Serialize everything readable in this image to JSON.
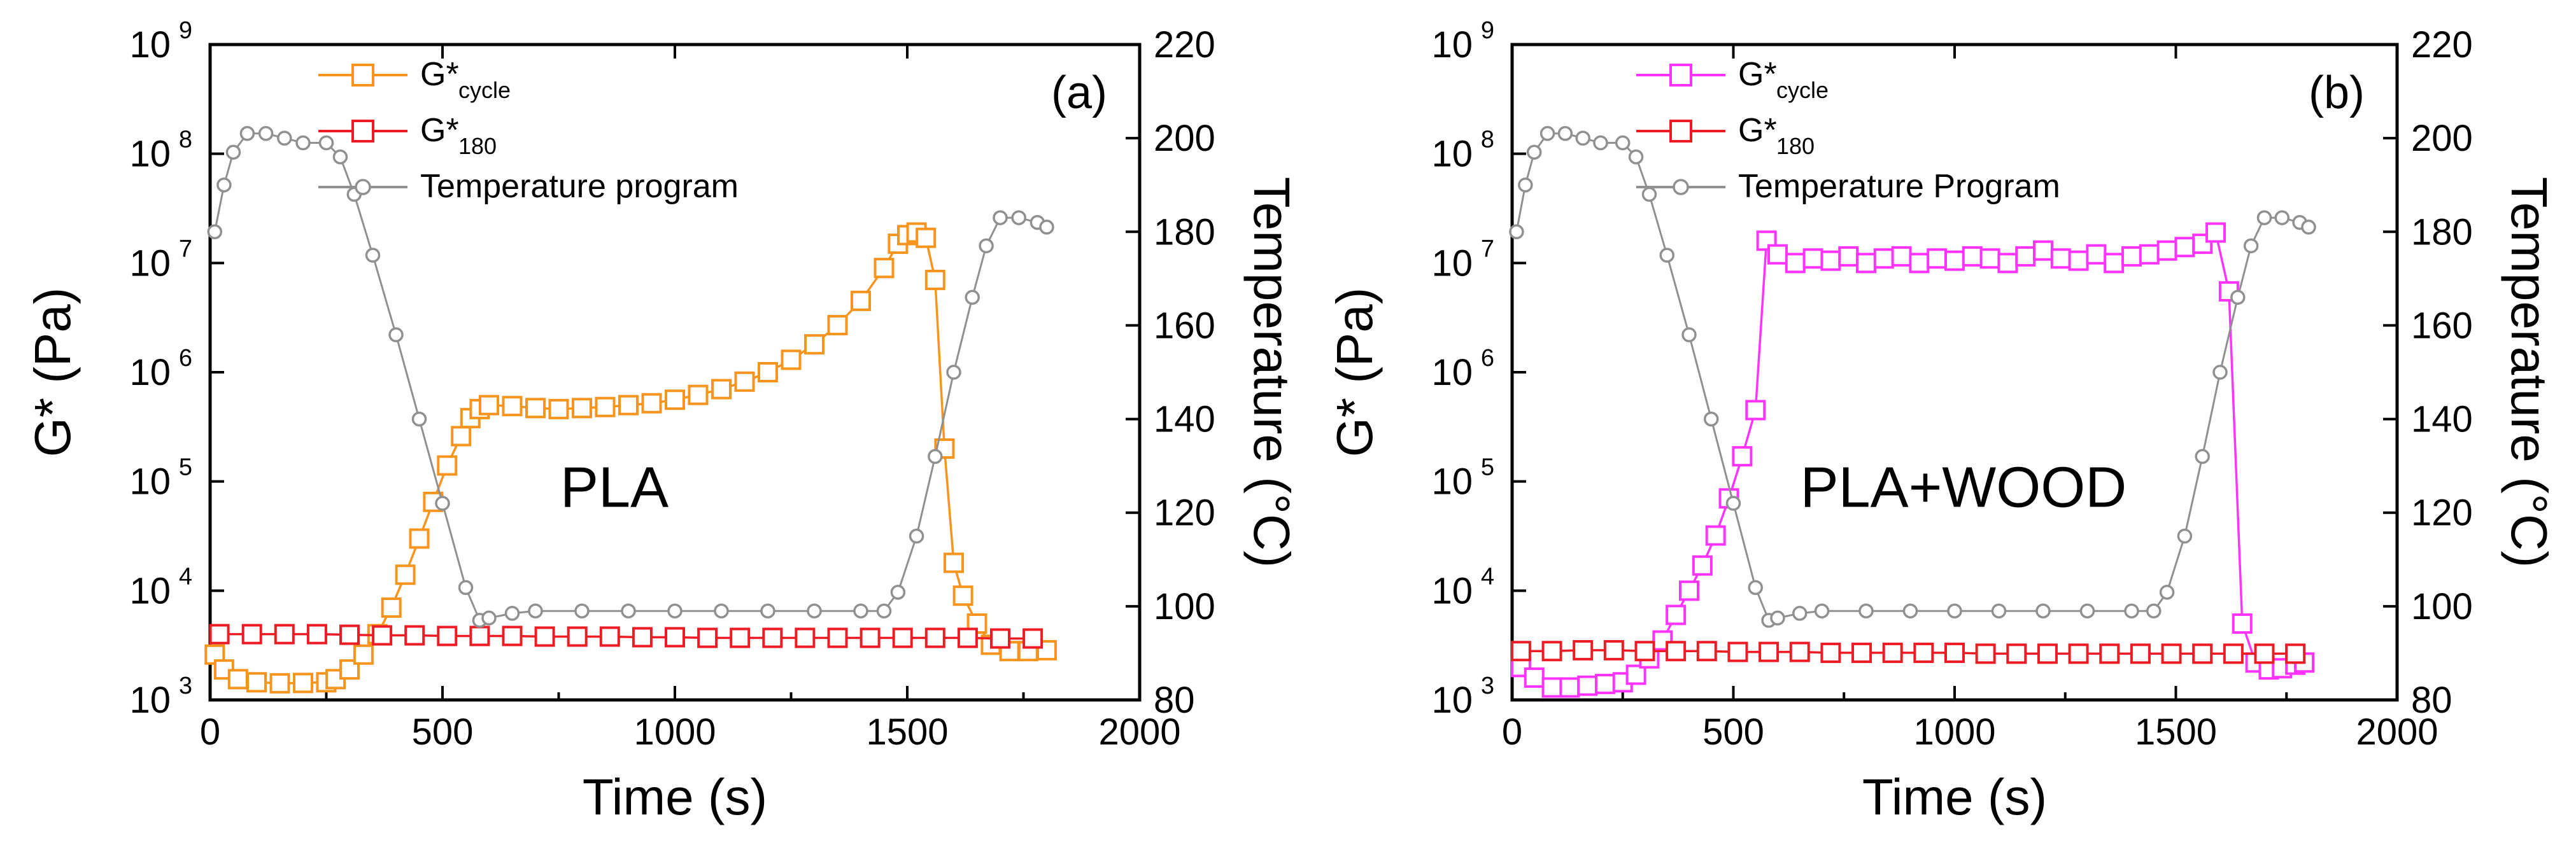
{
  "chart_data": [
    {
      "type": "line",
      "panel_label": "(a)",
      "center_label": "PLA",
      "xlabel": "Time (s)",
      "ylabel": "G* (Pa)",
      "ylabel_right": "Temperature (°C)",
      "xlim": [
        0,
        2000
      ],
      "ylim_log": [
        3,
        9
      ],
      "ylim_right": [
        80,
        220
      ],
      "x_ticks": [
        "0",
        "500",
        "1000",
        "1500",
        "2000"
      ],
      "y_ticks": [
        {
          "base": "10",
          "exp": "3"
        },
        {
          "base": "10",
          "exp": "4"
        },
        {
          "base": "10",
          "exp": "5"
        },
        {
          "base": "10",
          "exp": "6"
        },
        {
          "base": "10",
          "exp": "7"
        },
        {
          "base": "10",
          "exp": "8"
        },
        {
          "base": "10",
          "exp": "9"
        }
      ],
      "y_ticks_right": [
        "80",
        "100",
        "120",
        "140",
        "160",
        "180",
        "200",
        "220"
      ],
      "legend": [
        {
          "label": "G*",
          "sub": "cycle",
          "color": "#f7941d"
        },
        {
          "label": "G*",
          "sub": "180",
          "color": "#ed1c24"
        },
        {
          "label": "Temperature program",
          "sub": "",
          "color": "#909090"
        }
      ],
      "series": [
        {
          "name": "G* cycle",
          "axis": "left",
          "marker": "square",
          "color": "#f7941d",
          "points": [
            [
              10,
              2600
            ],
            [
              30,
              1900
            ],
            [
              60,
              1550
            ],
            [
              100,
              1450
            ],
            [
              150,
              1420
            ],
            [
              200,
              1430
            ],
            [
              250,
              1450
            ],
            [
              270,
              1550
            ],
            [
              300,
              1900
            ],
            [
              330,
              2600
            ],
            [
              360,
              4000
            ],
            [
              390,
              7000
            ],
            [
              420,
              14000
            ],
            [
              450,
              30000
            ],
            [
              480,
              65000
            ],
            [
              510,
              140000
            ],
            [
              540,
              260000
            ],
            [
              560,
              380000
            ],
            [
              580,
              460000
            ],
            [
              600,
              500000
            ],
            [
              650,
              490000
            ],
            [
              700,
              470000
            ],
            [
              750,
              460000
            ],
            [
              800,
              470000
            ],
            [
              850,
              480000
            ],
            [
              900,
              500000
            ],
            [
              950,
              520000
            ],
            [
              1000,
              560000
            ],
            [
              1050,
              620000
            ],
            [
              1100,
              700000
            ],
            [
              1150,
              820000
            ],
            [
              1200,
              1000000
            ],
            [
              1250,
              1300000
            ],
            [
              1300,
              1800000
            ],
            [
              1350,
              2700000
            ],
            [
              1400,
              4500000
            ],
            [
              1450,
              9000000
            ],
            [
              1480,
              15000000
            ],
            [
              1500,
              18000000
            ],
            [
              1520,
              19000000
            ],
            [
              1540,
              17000000
            ],
            [
              1560,
              7000000
            ],
            [
              1580,
              200000
            ],
            [
              1600,
              18000
            ],
            [
              1620,
              9000
            ],
            [
              1650,
              5000
            ],
            [
              1680,
              3200
            ],
            [
              1720,
              2800
            ],
            [
              1760,
              2800
            ],
            [
              1800,
              2850
            ]
          ]
        },
        {
          "name": "G* 180",
          "axis": "left",
          "marker": "square",
          "color": "#ed1c24",
          "points": [
            [
              20,
              4000
            ],
            [
              90,
              4000
            ],
            [
              160,
              4000
            ],
            [
              230,
              4000
            ],
            [
              300,
              3950
            ],
            [
              370,
              3900
            ],
            [
              440,
              3900
            ],
            [
              510,
              3850
            ],
            [
              580,
              3850
            ],
            [
              650,
              3850
            ],
            [
              720,
              3800
            ],
            [
              790,
              3800
            ],
            [
              860,
              3800
            ],
            [
              930,
              3750
            ],
            [
              1000,
              3750
            ],
            [
              1070,
              3700
            ],
            [
              1140,
              3700
            ],
            [
              1210,
              3700
            ],
            [
              1280,
              3700
            ],
            [
              1350,
              3700
            ],
            [
              1420,
              3700
            ],
            [
              1490,
              3700
            ],
            [
              1560,
              3700
            ],
            [
              1630,
              3700
            ],
            [
              1700,
              3650
            ],
            [
              1770,
              3650
            ]
          ]
        },
        {
          "name": "Temperature program",
          "axis": "right",
          "marker": "circle",
          "color": "#909090",
          "points": [
            [
              10,
              180
            ],
            [
              30,
              190
            ],
            [
              50,
              197
            ],
            [
              80,
              201
            ],
            [
              120,
              201
            ],
            [
              160,
              200
            ],
            [
              200,
              199
            ],
            [
              250,
              199
            ],
            [
              280,
              196
            ],
            [
              310,
              188
            ],
            [
              350,
              175
            ],
            [
              400,
              158
            ],
            [
              450,
              140
            ],
            [
              500,
              122
            ],
            [
              550,
              104
            ],
            [
              580,
              97
            ],
            [
              600,
              97.5
            ],
            [
              650,
              98.5
            ],
            [
              700,
              99
            ],
            [
              800,
              99
            ],
            [
              900,
              99
            ],
            [
              1000,
              99
            ],
            [
              1100,
              99
            ],
            [
              1200,
              99
            ],
            [
              1300,
              99
            ],
            [
              1400,
              99
            ],
            [
              1450,
              99
            ],
            [
              1480,
              103
            ],
            [
              1520,
              115
            ],
            [
              1560,
              132
            ],
            [
              1600,
              150
            ],
            [
              1640,
              166
            ],
            [
              1670,
              177
            ],
            [
              1700,
              183
            ],
            [
              1740,
              183
            ],
            [
              1780,
              182
            ],
            [
              1800,
              181
            ]
          ]
        }
      ]
    },
    {
      "type": "line",
      "panel_label": "(b)",
      "center_label": "PLA+WOOD",
      "xlabel": "Time (s)",
      "ylabel": "G* (Pa)",
      "ylabel_right": "Temperature (°C)",
      "xlim": [
        0,
        2000
      ],
      "ylim_log": [
        3,
        9
      ],
      "ylim_right": [
        80,
        220
      ],
      "x_ticks": [
        "0",
        "500",
        "1000",
        "1500",
        "2000"
      ],
      "y_ticks": [
        {
          "base": "10",
          "exp": "3"
        },
        {
          "base": "10",
          "exp": "4"
        },
        {
          "base": "10",
          "exp": "5"
        },
        {
          "base": "10",
          "exp": "6"
        },
        {
          "base": "10",
          "exp": "7"
        },
        {
          "base": "10",
          "exp": "8"
        },
        {
          "base": "10",
          "exp": "9"
        }
      ],
      "y_ticks_right": [
        "80",
        "100",
        "120",
        "140",
        "160",
        "180",
        "200",
        "220"
      ],
      "legend": [
        {
          "label": "G*",
          "sub": "cycle",
          "color": "#ff33ff"
        },
        {
          "label": "G*",
          "sub": "180",
          "color": "#ed1c24"
        },
        {
          "label": "Temperature Program",
          "sub": "",
          "color": "#909090"
        }
      ],
      "series": [
        {
          "name": "G* cycle",
          "axis": "left",
          "marker": "square",
          "color": "#ff33ff",
          "points": [
            [
              20,
              2000
            ],
            [
              50,
              1600
            ],
            [
              90,
              1300
            ],
            [
              130,
              1300
            ],
            [
              170,
              1350
            ],
            [
              210,
              1400
            ],
            [
              250,
              1450
            ],
            [
              280,
              1700
            ],
            [
              310,
              2400
            ],
            [
              340,
              3500
            ],
            [
              370,
              6000
            ],
            [
              400,
              10000
            ],
            [
              430,
              17000
            ],
            [
              460,
              32000
            ],
            [
              490,
              70000
            ],
            [
              520,
              170000
            ],
            [
              550,
              450000
            ],
            [
              575,
              16000000
            ],
            [
              600,
              12000000
            ],
            [
              640,
              10000000
            ],
            [
              680,
              11000000
            ],
            [
              720,
              10500000
            ],
            [
              760,
              11500000
            ],
            [
              800,
              10000000
            ],
            [
              840,
              11000000
            ],
            [
              880,
              11500000
            ],
            [
              920,
              10000000
            ],
            [
              960,
              11000000
            ],
            [
              1000,
              10500000
            ],
            [
              1040,
              11500000
            ],
            [
              1080,
              11000000
            ],
            [
              1120,
              10000000
            ],
            [
              1160,
              11500000
            ],
            [
              1200,
              13000000
            ],
            [
              1240,
              11000000
            ],
            [
              1280,
              10500000
            ],
            [
              1320,
              12000000
            ],
            [
              1360,
              10000000
            ],
            [
              1400,
              11500000
            ],
            [
              1440,
              12000000
            ],
            [
              1480,
              13000000
            ],
            [
              1520,
              14000000
            ],
            [
              1560,
              15000000
            ],
            [
              1590,
              19000000
            ],
            [
              1620,
              5500000
            ],
            [
              1650,
              5000
            ],
            [
              1680,
              2200
            ],
            [
              1710,
              1900
            ],
            [
              1740,
              1950
            ],
            [
              1770,
              2100
            ],
            [
              1790,
              2200
            ]
          ]
        },
        {
          "name": "G* 180",
          "axis": "left",
          "marker": "square",
          "color": "#ed1c24",
          "points": [
            [
              20,
              2800
            ],
            [
              90,
              2800
            ],
            [
              160,
              2850
            ],
            [
              230,
              2850
            ],
            [
              300,
              2800
            ],
            [
              370,
              2800
            ],
            [
              440,
              2800
            ],
            [
              510,
              2750
            ],
            [
              580,
              2750
            ],
            [
              650,
              2750
            ],
            [
              720,
              2700
            ],
            [
              790,
              2700
            ],
            [
              860,
              2700
            ],
            [
              930,
              2700
            ],
            [
              1000,
              2700
            ],
            [
              1070,
              2650
            ],
            [
              1140,
              2650
            ],
            [
              1210,
              2650
            ],
            [
              1280,
              2650
            ],
            [
              1350,
              2650
            ],
            [
              1420,
              2650
            ],
            [
              1490,
              2650
            ],
            [
              1560,
              2650
            ],
            [
              1630,
              2650
            ],
            [
              1700,
              2650
            ],
            [
              1770,
              2650
            ]
          ]
        },
        {
          "name": "Temperature Program",
          "axis": "right",
          "marker": "circle",
          "color": "#909090",
          "points": [
            [
              10,
              180
            ],
            [
              30,
              190
            ],
            [
              50,
              197
            ],
            [
              80,
              201
            ],
            [
              120,
              201
            ],
            [
              160,
              200
            ],
            [
              200,
              199
            ],
            [
              250,
              199
            ],
            [
              280,
              196
            ],
            [
              310,
              188
            ],
            [
              350,
              175
            ],
            [
              400,
              158
            ],
            [
              450,
              140
            ],
            [
              500,
              122
            ],
            [
              550,
              104
            ],
            [
              580,
              97
            ],
            [
              600,
              97.5
            ],
            [
              650,
              98.5
            ],
            [
              700,
              99
            ],
            [
              800,
              99
            ],
            [
              900,
              99
            ],
            [
              1000,
              99
            ],
            [
              1100,
              99
            ],
            [
              1200,
              99
            ],
            [
              1300,
              99
            ],
            [
              1400,
              99
            ],
            [
              1450,
              99
            ],
            [
              1480,
              103
            ],
            [
              1520,
              115
            ],
            [
              1560,
              132
            ],
            [
              1600,
              150
            ],
            [
              1640,
              166
            ],
            [
              1670,
              177
            ],
            [
              1700,
              183
            ],
            [
              1740,
              183
            ],
            [
              1780,
              182
            ],
            [
              1800,
              181
            ]
          ]
        }
      ]
    }
  ]
}
